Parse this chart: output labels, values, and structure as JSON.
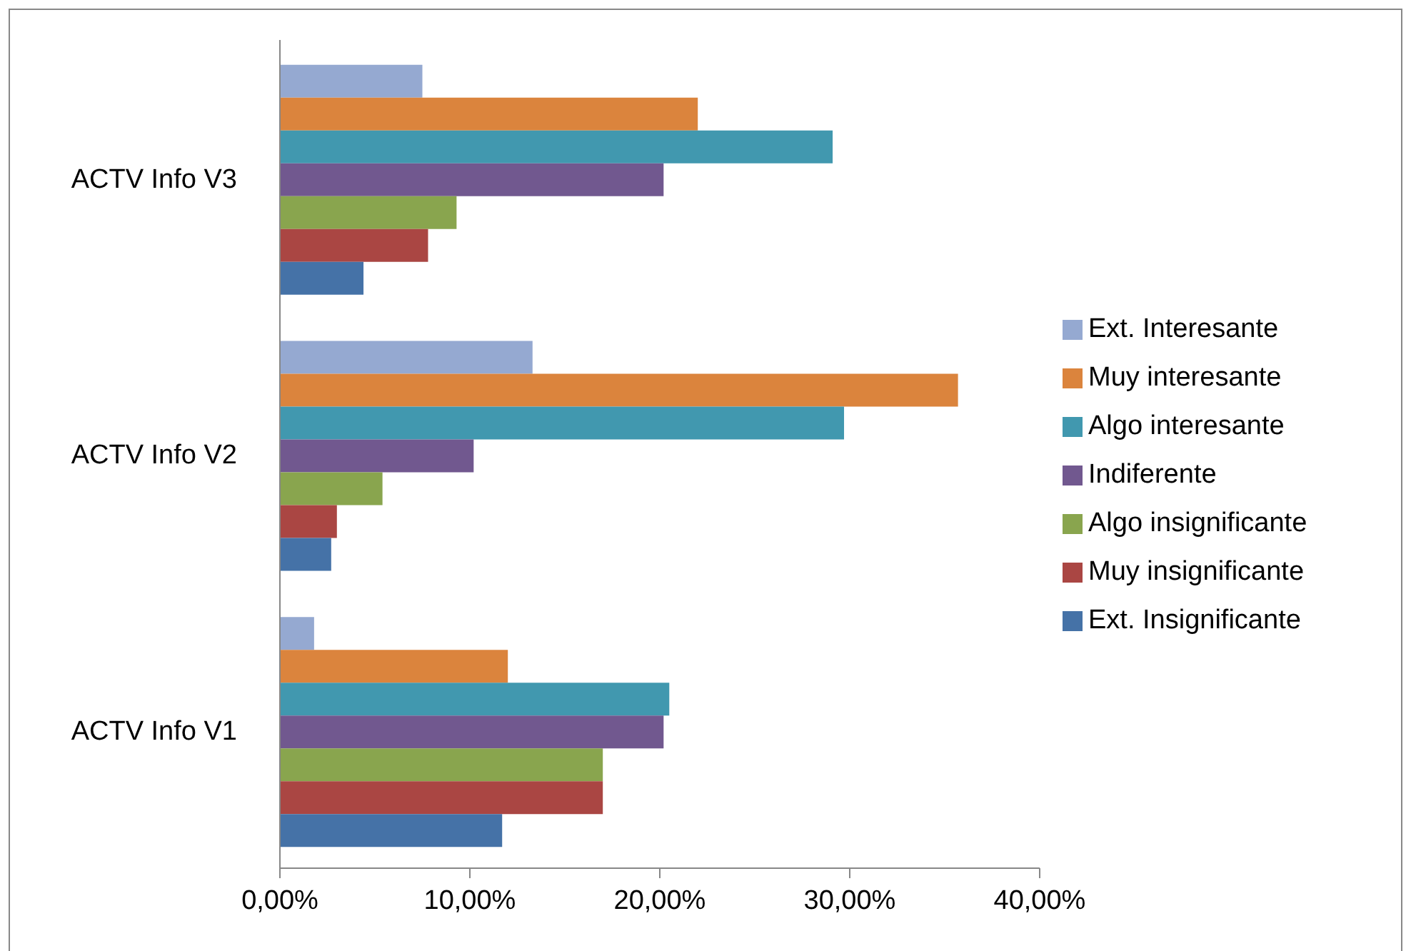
{
  "chart_data": {
    "type": "bar",
    "orientation": "horizontal",
    "categories": [
      "ACTV Info V3",
      "ACTV Info V2",
      "ACTV Info V1"
    ],
    "series": [
      {
        "name": "Ext. Interesante",
        "color": "#95a9d1",
        "values": [
          7.5,
          13.3,
          1.8
        ]
      },
      {
        "name": "Muy interesante",
        "color": "#db843d",
        "values": [
          22.0,
          35.7,
          12.0
        ]
      },
      {
        "name": "Algo interesante",
        "color": "#4198af",
        "values": [
          29.1,
          29.7,
          20.5
        ]
      },
      {
        "name": "Indiferente",
        "color": "#71588f",
        "values": [
          20.2,
          10.2,
          20.2
        ]
      },
      {
        "name": "Algo insignificante",
        "color": "#89a54e",
        "values": [
          9.3,
          5.4,
          17.0
        ]
      },
      {
        "name": "Muy insignificante",
        "color": "#aa4643",
        "values": [
          7.8,
          3.0,
          17.0
        ]
      },
      {
        "name": "Ext. Insignificante",
        "color": "#4572a7",
        "values": [
          4.4,
          2.7,
          11.7
        ]
      }
    ],
    "xlim": [
      0,
      40
    ],
    "xticks": [
      {
        "value": 0,
        "label": "0,00%"
      },
      {
        "value": 10,
        "label": "10,00%"
      },
      {
        "value": 20,
        "label": "20,00%"
      },
      {
        "value": 30,
        "label": "30,00%"
      },
      {
        "value": 40,
        "label": "40,00%"
      }
    ],
    "grid": false,
    "legend": "right"
  }
}
